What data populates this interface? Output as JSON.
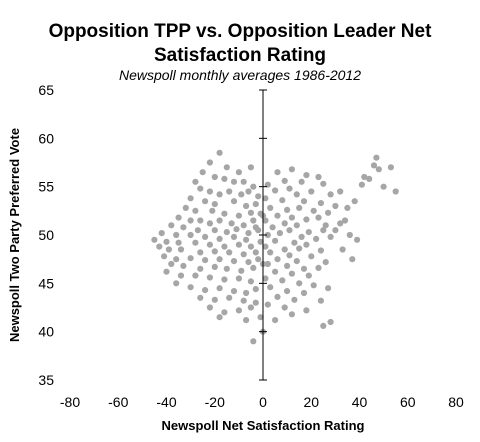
{
  "chart_data": {
    "type": "scatter",
    "title_line1": "Opposition TPP vs. Opposition Leader Net",
    "title_line2": "Satisfaction Rating",
    "subtitle": "Newspoll monthly averages 1986-2012",
    "xlabel": "Newspoll Net Satisfaction Rating",
    "ylabel": "Newspoll Two Party Preferred Vote",
    "xlim": [
      -80,
      80
    ],
    "ylim": [
      35,
      65
    ],
    "xticks": [
      "-80",
      "-60",
      "-40",
      "-20",
      "0",
      "20",
      "40",
      "60",
      "80"
    ],
    "yticks": [
      "35",
      "40",
      "45",
      "50",
      "55",
      "60",
      "65"
    ],
    "grid": false,
    "legend": "none",
    "marker_color": "#a6a6a6",
    "axis_color": "#000000",
    "points": [
      [
        -18,
        58.5
      ],
      [
        -22,
        57.5
      ],
      [
        -15,
        57
      ],
      [
        -25,
        56.5
      ],
      [
        -10,
        56.5
      ],
      [
        -5,
        57
      ],
      [
        -20,
        56
      ],
      [
        -28,
        55.5
      ],
      [
        -16,
        55.8
      ],
      [
        -12,
        55.5
      ],
      [
        -8,
        55.5
      ],
      [
        -4,
        55
      ],
      [
        -26,
        54.8
      ],
      [
        -22,
        54.5
      ],
      [
        -18,
        54.2
      ],
      [
        -14,
        54.5
      ],
      [
        -9,
        54.2
      ],
      [
        -6,
        54.5
      ],
      [
        -2,
        54
      ],
      [
        -30,
        53.8
      ],
      [
        -24,
        53.5
      ],
      [
        -20,
        53.2
      ],
      [
        -12,
        53.5
      ],
      [
        -7,
        53
      ],
      [
        -3,
        53.2
      ],
      [
        -32,
        52.8
      ],
      [
        -28,
        52.5
      ],
      [
        -21,
        52.5
      ],
      [
        -16,
        52.2
      ],
      [
        -10,
        52
      ],
      [
        -5,
        52.3
      ],
      [
        -1,
        52.2
      ],
      [
        -35,
        51.8
      ],
      [
        -30,
        51.5
      ],
      [
        -26,
        51.5
      ],
      [
        -22,
        51.2
      ],
      [
        -18,
        51.5
      ],
      [
        -13,
        51.2
      ],
      [
        -8,
        51
      ],
      [
        -4,
        51.5
      ],
      [
        -38,
        51
      ],
      [
        -33,
        50.8
      ],
      [
        -27,
        50.5
      ],
      [
        -20,
        50.5
      ],
      [
        -15,
        50.3
      ],
      [
        -11,
        50.6
      ],
      [
        -6,
        50.2
      ],
      [
        -2,
        50.5
      ],
      [
        -3,
        50.8
      ],
      [
        -42,
        50.2
      ],
      [
        -36,
        50
      ],
      [
        -30,
        50
      ],
      [
        -24,
        49.8
      ],
      [
        -18,
        49.6
      ],
      [
        -12,
        49.8
      ],
      [
        -7,
        49.5
      ],
      [
        -45,
        49.5
      ],
      [
        -40,
        49.3
      ],
      [
        -35,
        49.2
      ],
      [
        -28,
        49.2
      ],
      [
        -22,
        49
      ],
      [
        -16,
        48.8
      ],
      [
        -10,
        49
      ],
      [
        -5,
        48.8
      ],
      [
        -1,
        49.3
      ],
      [
        -43,
        48.8
      ],
      [
        -39,
        48.5
      ],
      [
        -34,
        48.5
      ],
      [
        -26,
        48.2
      ],
      [
        -20,
        48.3
      ],
      [
        -14,
        48.2
      ],
      [
        -8,
        48
      ],
      [
        -3,
        48.2
      ],
      [
        -41,
        47.8
      ],
      [
        -36,
        47.5
      ],
      [
        -30,
        47.6
      ],
      [
        -24,
        47.4
      ],
      [
        -18,
        47.5
      ],
      [
        -12,
        47.3
      ],
      [
        -6,
        47.2
      ],
      [
        -2,
        47.5
      ],
      [
        -38,
        47
      ],
      [
        -33,
        46.8
      ],
      [
        -26,
        46.5
      ],
      [
        -20,
        46.7
      ],
      [
        -15,
        46.5
      ],
      [
        -9,
        46.3
      ],
      [
        -4,
        46.6
      ],
      [
        -40,
        46.2
      ],
      [
        -34,
        45.8
      ],
      [
        -28,
        45.8
      ],
      [
        -22,
        45.6
      ],
      [
        -16,
        45.4
      ],
      [
        -10,
        45.5
      ],
      [
        -5,
        45.2
      ],
      [
        -36,
        45
      ],
      [
        -30,
        44.6
      ],
      [
        -24,
        44.3
      ],
      [
        -18,
        44.5
      ],
      [
        -12,
        44.2
      ],
      [
        -7,
        44
      ],
      [
        -3,
        44.4
      ],
      [
        -26,
        43.5
      ],
      [
        -20,
        43.3
      ],
      [
        -14,
        43.5
      ],
      [
        -8,
        43.2
      ],
      [
        -3,
        43
      ],
      [
        -22,
        42.5
      ],
      [
        -16,
        42
      ],
      [
        -10,
        42.2
      ],
      [
        -5,
        42.5
      ],
      [
        -18,
        41.5
      ],
      [
        -7,
        41.2
      ],
      [
        -1,
        41.5
      ],
      [
        -4,
        39
      ],
      [
        6,
        56.5
      ],
      [
        12,
        56.8
      ],
      [
        18,
        56.2
      ],
      [
        23,
        56
      ],
      [
        9,
        55.6
      ],
      [
        16,
        55.5
      ],
      [
        2,
        55.2
      ],
      [
        25,
        55.3
      ],
      [
        5,
        54.6
      ],
      [
        11,
        54.8
      ],
      [
        20,
        54.5
      ],
      [
        14,
        54.2
      ],
      [
        28,
        54.2
      ],
      [
        1,
        53.8
      ],
      [
        8,
        53.6
      ],
      [
        17,
        53.5
      ],
      [
        24,
        53.3
      ],
      [
        30,
        53
      ],
      [
        3,
        52.8
      ],
      [
        10,
        52.6
      ],
      [
        15,
        52.8
      ],
      [
        21,
        52.5
      ],
      [
        27,
        52.3
      ],
      [
        6,
        52
      ],
      [
        12,
        51.8
      ],
      [
        18,
        51.6
      ],
      [
        23,
        51.8
      ],
      [
        1,
        51.5
      ],
      [
        9,
        51.2
      ],
      [
        14,
        51
      ],
      [
        26,
        51
      ],
      [
        32,
        51.2
      ],
      [
        4,
        50.8
      ],
      [
        11,
        50.5
      ],
      [
        19,
        50.3
      ],
      [
        25,
        50.5
      ],
      [
        2,
        50
      ],
      [
        7,
        50.2
      ],
      [
        16,
        49.8
      ],
      [
        22,
        49.6
      ],
      [
        28,
        49.8
      ],
      [
        5,
        49.4
      ],
      [
        13,
        49.2
      ],
      [
        18,
        49
      ],
      [
        1,
        48.8
      ],
      [
        9,
        48.5
      ],
      [
        15,
        48.6
      ],
      [
        24,
        48.4
      ],
      [
        3,
        48.2
      ],
      [
        11,
        47.9
      ],
      [
        20,
        47.8
      ],
      [
        6,
        47.5
      ],
      [
        14,
        47.3
      ],
      [
        26,
        47.2
      ],
      [
        2,
        47
      ],
      [
        10,
        46.8
      ],
      [
        17,
        46.5
      ],
      [
        23,
        46.6
      ],
      [
        5,
        46.2
      ],
      [
        12,
        46
      ],
      [
        19,
        45.8
      ],
      [
        1,
        45.5
      ],
      [
        8,
        45.3
      ],
      [
        15,
        45
      ],
      [
        21,
        44.8
      ],
      [
        27,
        44.5
      ],
      [
        3,
        44.6
      ],
      [
        10,
        44.2
      ],
      [
        17,
        44
      ],
      [
        6,
        43.6
      ],
      [
        13,
        43.3
      ],
      [
        24,
        43.2
      ],
      [
        2,
        42.8
      ],
      [
        9,
        42.5
      ],
      [
        18,
        42.2
      ],
      [
        12,
        41.8
      ],
      [
        5,
        41.2
      ],
      [
        25,
        40.6
      ],
      [
        28,
        41
      ],
      [
        0,
        40
      ],
      [
        0,
        47
      ],
      [
        0,
        52
      ],
      [
        34,
        51.5
      ],
      [
        36,
        50
      ],
      [
        39,
        49.5
      ],
      [
        33,
        48.5
      ],
      [
        37,
        47.5
      ],
      [
        42,
        56
      ],
      [
        44,
        55.8
      ],
      [
        46,
        57.2
      ],
      [
        48,
        56.8
      ],
      [
        47,
        58
      ],
      [
        50,
        55
      ],
      [
        53,
        57
      ],
      [
        55,
        54.5
      ],
      [
        41,
        55.2
      ],
      [
        35,
        52.8
      ],
      [
        38,
        53.5
      ],
      [
        32,
        54.5
      ],
      [
        30,
        50.5
      ]
    ]
  }
}
